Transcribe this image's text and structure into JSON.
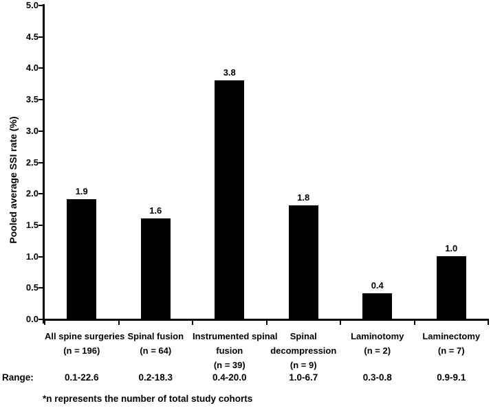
{
  "chart_data": {
    "type": "bar",
    "title": "",
    "ylabel": "Pooled average SSI rate (%)",
    "xlabel": "",
    "ylim": [
      0.0,
      5.0
    ],
    "ytick_interval": 0.5,
    "grid": false,
    "legend": false,
    "bar_color": "#000000",
    "categories": [
      "All spine surgeries (n = 196)",
      "Spinal fusion (n = 64)",
      "Instrumented spinal fusion (n = 39)",
      "Spinal decompression (n = 9)",
      "Laminotomy (n = 2)",
      "Laminectomy (n = 7)"
    ],
    "category_label_lines": [
      [
        "All spine surgeries",
        "(n = 196)"
      ],
      [
        "Spinal fusion",
        "(n = 64)"
      ],
      [
        "Instrumented spinal",
        "fusion",
        "(n = 39)"
      ],
      [
        "Spinal",
        "decompression",
        "(n = 9)"
      ],
      [
        "Laminotomy",
        "(n = 2)"
      ],
      [
        "Laminectomy",
        "(n = 7)"
      ]
    ],
    "values": [
      1.9,
      1.6,
      3.8,
      1.8,
      0.4,
      1.0
    ],
    "data_labels": [
      "1.9",
      "1.6",
      "3.8",
      "1.8",
      "0.4",
      "1.0"
    ],
    "range_label": "Range:",
    "ranges": [
      "0.1-22.6",
      "0.2-18.3",
      "0.4-20.0",
      "1.0-6.7",
      "0.3-0.8",
      "0.9-9.1"
    ],
    "footnote": "*n represents the number of total study cohorts"
  }
}
